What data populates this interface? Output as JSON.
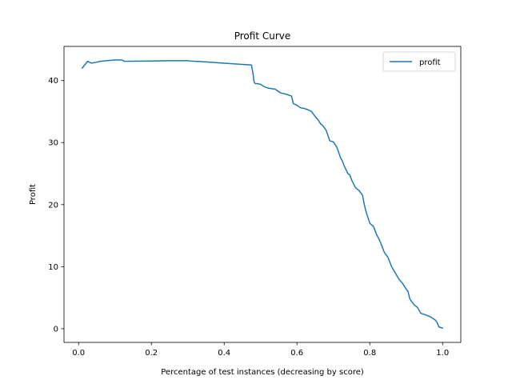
{
  "chart_data": {
    "type": "line",
    "title": "Profit Curve",
    "xlabel": "Percentage of test instances (decreasing by score)",
    "ylabel": "Profit",
    "xlim": [
      -0.04,
      1.05
    ],
    "ylim": [
      -2.2,
      45.5
    ],
    "xticks": [
      0.0,
      0.2,
      0.4,
      0.6,
      0.8,
      1.0
    ],
    "xtick_labels": [
      "0.0",
      "0.2",
      "0.4",
      "0.6",
      "0.8",
      "1.0"
    ],
    "yticks": [
      0,
      10,
      20,
      30,
      40
    ],
    "ytick_labels": [
      "0",
      "10",
      "20",
      "30",
      "40"
    ],
    "grid": false,
    "legend_position": "top-right",
    "series": [
      {
        "name": "profit",
        "color": "#1f77b4",
        "x": [
          0.01,
          0.025,
          0.035,
          0.045,
          0.06,
          0.075,
          0.1,
          0.12,
          0.125,
          0.2,
          0.25,
          0.3,
          0.305,
          0.35,
          0.4,
          0.45,
          0.475,
          0.478,
          0.48,
          0.482,
          0.485,
          0.49,
          0.5,
          0.51,
          0.52,
          0.54,
          0.55,
          0.555,
          0.57,
          0.585,
          0.59,
          0.6,
          0.61,
          0.62,
          0.63,
          0.64,
          0.65,
          0.66,
          0.665,
          0.67,
          0.68,
          0.69,
          0.7,
          0.71,
          0.72,
          0.725,
          0.73,
          0.74,
          0.745,
          0.75,
          0.76,
          0.765,
          0.77,
          0.78,
          0.785,
          0.79,
          0.8,
          0.81,
          0.82,
          0.825,
          0.83,
          0.84,
          0.85,
          0.86,
          0.87,
          0.875,
          0.88,
          0.89,
          0.9,
          0.905,
          0.91,
          0.92,
          0.925,
          0.93,
          0.94,
          0.95,
          0.96,
          0.97,
          0.98,
          0.985,
          0.99,
          1.0
        ],
        "y": [
          42.0,
          43.1,
          42.8,
          42.9,
          43.1,
          43.2,
          43.3,
          43.3,
          43.1,
          43.15,
          43.2,
          43.2,
          43.15,
          43.0,
          42.8,
          42.6,
          42.5,
          41.5,
          40.8,
          39.8,
          39.5,
          39.5,
          39.4,
          39.0,
          38.8,
          38.6,
          38.2,
          38.0,
          37.8,
          37.5,
          36.3,
          36.0,
          35.6,
          35.5,
          35.3,
          35.0,
          34.2,
          33.5,
          33.0,
          32.8,
          32.0,
          30.3,
          30.1,
          29.2,
          27.5,
          27.0,
          26.2,
          25.0,
          24.8,
          24.0,
          22.8,
          22.5,
          22.3,
          21.5,
          20.0,
          18.8,
          17.0,
          16.5,
          15.0,
          14.5,
          13.8,
          12.3,
          11.5,
          10.0,
          9.0,
          8.5,
          8.0,
          7.3,
          6.4,
          6.0,
          4.8,
          4.0,
          3.7,
          3.5,
          2.5,
          2.3,
          2.1,
          1.8,
          1.4,
          1.0,
          0.3,
          0.1
        ]
      }
    ]
  }
}
